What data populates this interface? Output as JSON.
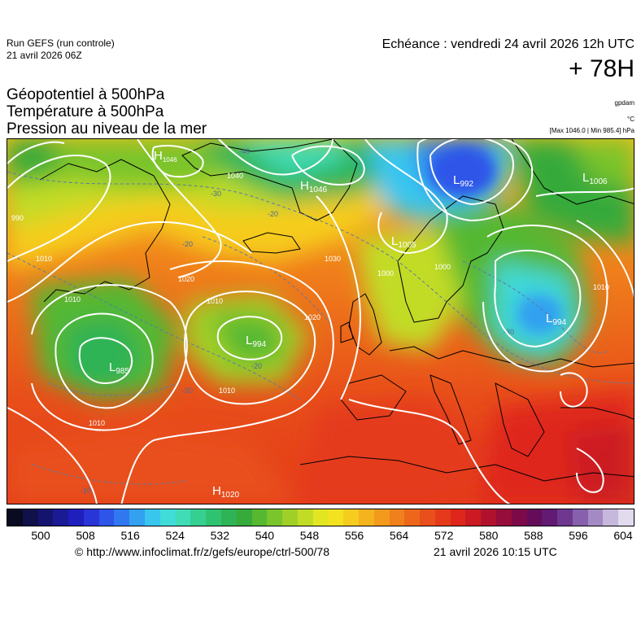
{
  "header": {
    "run_name": "Run GEFS (run controle)",
    "run_date": "21 avril 2026 06Z",
    "echeance": "Echéance : vendredi 24 avril 2026 12h UTC",
    "lead_time": "+ 78H"
  },
  "titles": {
    "line1": "Géopotentiel à 500hPa",
    "line2": "Température à 500hPa",
    "line3": "Pression au niveau de la mer"
  },
  "units": {
    "geopotential": "gpdam",
    "temperature": "°C",
    "pressure_range": "[Max 1046.0 | Min 985.4] hPa"
  },
  "pressure_centers": [
    {
      "type": "H",
      "value": "1046",
      "label": "H1046"
    },
    {
      "type": "H",
      "value": "1046",
      "label": "H1046"
    },
    {
      "type": "L",
      "value": "992",
      "label": "L992"
    },
    {
      "type": "L",
      "value": "1006",
      "label": "L1006"
    },
    {
      "type": "L",
      "value": "1005",
      "label": "L1005"
    },
    {
      "type": "L",
      "value": "994",
      "label": "L994"
    },
    {
      "type": "L",
      "value": "985",
      "label": "L985"
    },
    {
      "type": "L",
      "value": "994",
      "label": "L994"
    },
    {
      "type": "H",
      "value": "1020",
      "label": "H1020"
    }
  ],
  "isobar_labels": [
    "1040",
    "1030",
    "1020",
    "1010",
    "1000",
    "1020",
    "1010",
    "1010",
    "1010",
    "1010",
    "1010",
    "1000",
    "990"
  ],
  "temperature_labels": [
    "-40",
    "-30",
    "-20",
    "-20",
    "-20",
    "-20",
    "-10",
    "-30"
  ],
  "colorbar": {
    "ticks": [
      "500",
      "508",
      "516",
      "524",
      "532",
      "540",
      "548",
      "556",
      "564",
      "572",
      "580",
      "588",
      "596",
      "604"
    ],
    "colors": [
      "#0a0a20",
      "#10104a",
      "#141470",
      "#1a1a95",
      "#1f1fbb",
      "#2a35d8",
      "#2d55e8",
      "#2f78f0",
      "#33a0f0",
      "#38c6ee",
      "#3fdcd8",
      "#3fdcb5",
      "#35cf90",
      "#2fc270",
      "#2eb355",
      "#36aa3a",
      "#55b830",
      "#7ac42c",
      "#a0d028",
      "#c2dc25",
      "#e2e622",
      "#f2e21f",
      "#f6cc1e",
      "#f5b31d",
      "#f39a1c",
      "#f0801b",
      "#ec671a",
      "#e84f1a",
      "#e43a1a",
      "#df261b",
      "#cc1a22",
      "#b0122d",
      "#960c3a",
      "#7c0a48",
      "#640c5a",
      "#621a72",
      "#6e3890",
      "#8660ac",
      "#a48ac4",
      "#c6b8dc",
      "#e2daee"
    ]
  },
  "footer": {
    "copyright": "© http://www.infoclimat.fr/z/gefs/europe/ctrl-500/78",
    "issued": "21 avril 2026 10:15 UTC"
  }
}
